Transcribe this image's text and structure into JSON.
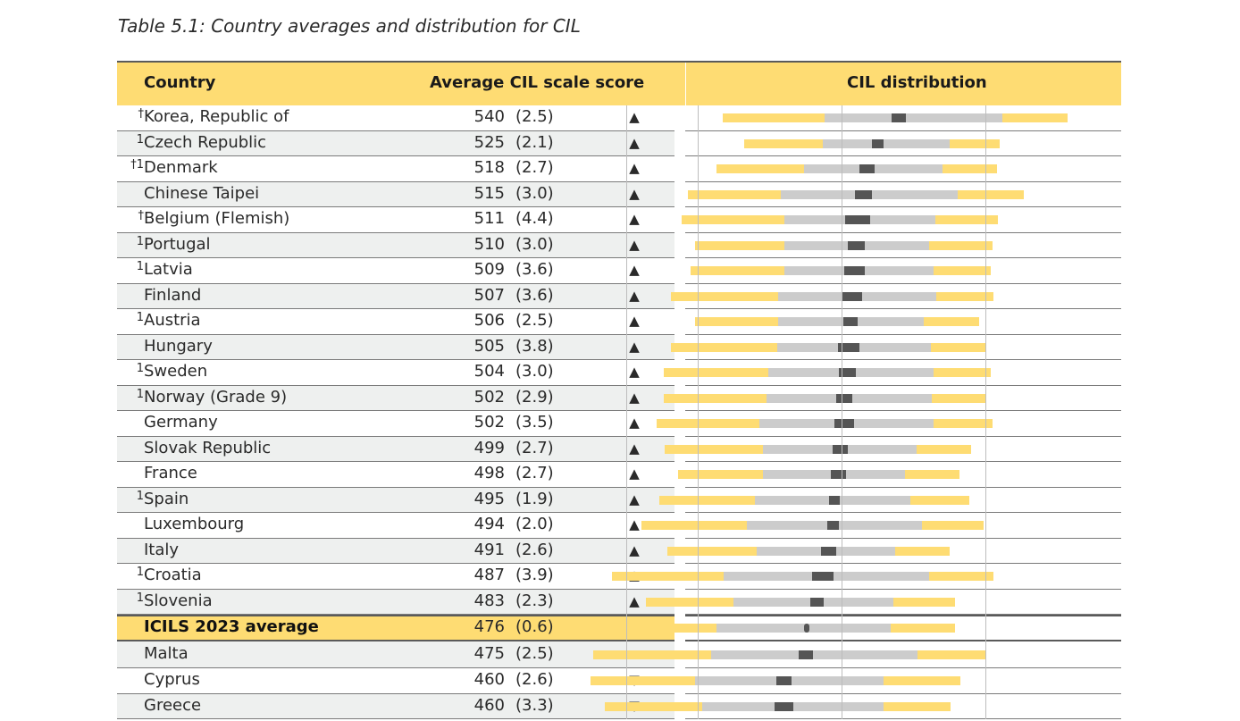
{
  "caption": "Table 5.1: Country averages and distribution for CIL",
  "header": {
    "country": "Country",
    "average": "Average CIL scale score",
    "distribution": "CIL distribution"
  },
  "colors": {
    "header_bg": "#fedc73",
    "outer_percentile": "#fedc73",
    "inner_percentile": "#cccccc",
    "mean_ci": "#555555",
    "row_shade": "#eef0ef"
  },
  "rows": [
    {
      "mark": "†",
      "country": "Korea, Republic of",
      "score": "540",
      "se": "(2.5)",
      "trend": "▲",
      "p5": 417,
      "p25": 488,
      "p75": 612,
      "p95": 657
    },
    {
      "mark": "1",
      "country": "Czech Republic",
      "score": "525",
      "se": "(2.1)",
      "trend": "▲",
      "p5": 432,
      "p25": 487,
      "p75": 575,
      "p95": 610
    },
    {
      "mark": "†1",
      "country": "Denmark",
      "score": "518",
      "se": "(2.7)",
      "trend": "▲",
      "p5": 413,
      "p25": 474,
      "p75": 570,
      "p95": 608
    },
    {
      "mark": "",
      "country": "Chinese Taipei",
      "score": "515",
      "se": "(3.0)",
      "trend": "▲",
      "p5": 393,
      "p25": 458,
      "p75": 581,
      "p95": 627
    },
    {
      "mark": "†",
      "country": "Belgium (Flemish)",
      "score": "511",
      "se": "(4.4)",
      "trend": "▲",
      "p5": 389,
      "p25": 460,
      "p75": 565,
      "p95": 609
    },
    {
      "mark": "1",
      "country": "Portugal",
      "score": "510",
      "se": "(3.0)",
      "trend": "▲",
      "p5": 398,
      "p25": 460,
      "p75": 561,
      "p95": 605
    },
    {
      "mark": "1",
      "country": "Latvia",
      "score": "509",
      "se": "(3.6)",
      "trend": "▲",
      "p5": 395,
      "p25": 460,
      "p75": 564,
      "p95": 604
    },
    {
      "mark": "",
      "country": "Finland",
      "score": "507",
      "se": "(3.6)",
      "trend": "▲",
      "p5": 381,
      "p25": 456,
      "p75": 566,
      "p95": 606
    },
    {
      "mark": "1",
      "country": "Austria",
      "score": "506",
      "se": "(2.5)",
      "trend": "▲",
      "p5": 398,
      "p25": 456,
      "p75": 557,
      "p95": 596
    },
    {
      "mark": "",
      "country": "Hungary",
      "score": "505",
      "se": "(3.8)",
      "trend": "▲",
      "p5": 381,
      "p25": 455,
      "p75": 562,
      "p95": 600
    },
    {
      "mark": "1",
      "country": "Sweden",
      "score": "504",
      "se": "(3.0)",
      "trend": "▲",
      "p5": 376,
      "p25": 449,
      "p75": 564,
      "p95": 604
    },
    {
      "mark": "1",
      "country": "Norway (Grade 9)",
      "score": "502",
      "se": "(2.9)",
      "trend": "▲",
      "p5": 376,
      "p25": 448,
      "p75": 563,
      "p95": 600
    },
    {
      "mark": "",
      "country": "Germany",
      "score": "502",
      "se": "(3.5)",
      "trend": "▲",
      "p5": 371,
      "p25": 443,
      "p75": 564,
      "p95": 605
    },
    {
      "mark": "",
      "country": "Slovak Republic",
      "score": "499",
      "se": "(2.7)",
      "trend": "▲",
      "p5": 377,
      "p25": 445,
      "p75": 552,
      "p95": 590
    },
    {
      "mark": "",
      "country": "France",
      "score": "498",
      "se": "(2.7)",
      "trend": "▲",
      "p5": 386,
      "p25": 445,
      "p75": 544,
      "p95": 582
    },
    {
      "mark": "1",
      "country": "Spain",
      "score": "495",
      "se": "(1.9)",
      "trend": "▲",
      "p5": 373,
      "p25": 440,
      "p75": 548,
      "p95": 589
    },
    {
      "mark": "",
      "country": "Luxembourg",
      "score": "494",
      "se": "(2.0)",
      "trend": "▲",
      "p5": 361,
      "p25": 434,
      "p75": 556,
      "p95": 599
    },
    {
      "mark": "",
      "country": "Italy",
      "score": "491",
      "se": "(2.6)",
      "trend": "▲",
      "p5": 379,
      "p25": 441,
      "p75": 537,
      "p95": 575
    },
    {
      "mark": "1",
      "country": "Croatia",
      "score": "487",
      "se": "(3.9)",
      "trend": "▲",
      "p5": 340,
      "p25": 418,
      "p75": 561,
      "p95": 606
    },
    {
      "mark": "1",
      "country": "Slovenia",
      "score": "483",
      "se": "(2.3)",
      "trend": "▲",
      "p5": 364,
      "p25": 425,
      "p75": 536,
      "p95": 579
    },
    {
      "mark": "",
      "country": "ICILS 2023 average",
      "score": "476",
      "se": "(0.6)",
      "trend": "",
      "avg": true,
      "p5": 347,
      "p25": 413,
      "p75": 534,
      "p95": 579
    },
    {
      "mark": "",
      "country": "Malta",
      "score": "475",
      "se": "(2.5)",
      "trend": "",
      "p5": 327,
      "p25": 409,
      "p75": 553,
      "p95": 601
    },
    {
      "mark": "",
      "country": "Cyprus",
      "score": "460",
      "se": "(2.6)",
      "trend": "▽",
      "p5": 325,
      "p25": 398,
      "p75": 529,
      "p95": 583
    },
    {
      "mark": "",
      "country": "Greece",
      "score": "460",
      "se": "(3.3)",
      "trend": "▽",
      "p5": 335,
      "p25": 403,
      "p75": 529,
      "p95": 576
    }
  ]
}
